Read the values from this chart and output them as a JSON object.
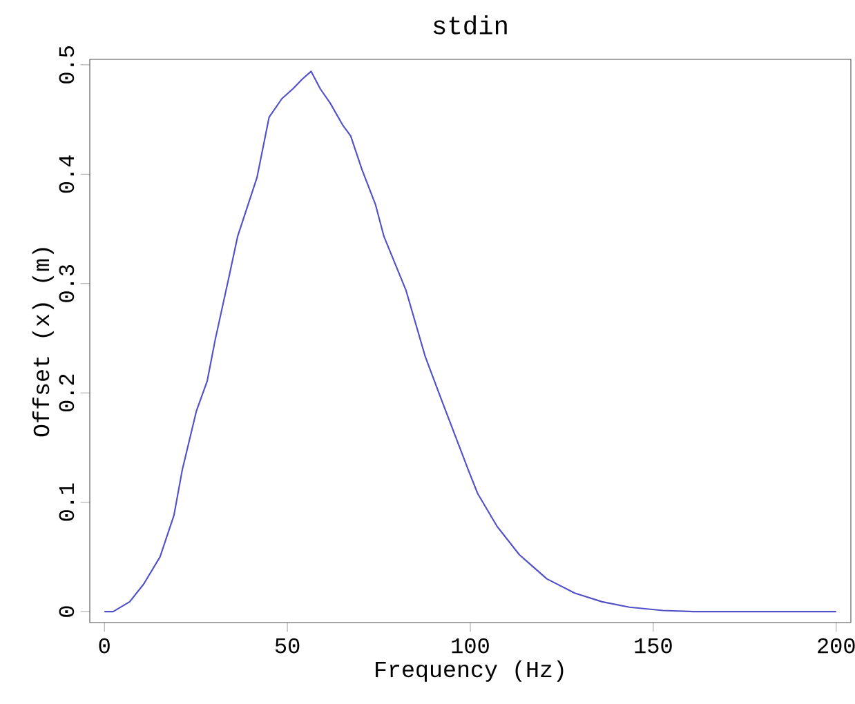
{
  "chart_data": {
    "type": "line",
    "title": "stdin",
    "xlabel": "Frequency (Hz)",
    "ylabel": "Offset (x) (m)",
    "x": [
      0,
      2.4,
      6.9,
      10.7,
      15.2,
      19.0,
      21.3,
      25.1,
      28.1,
      30.3,
      34.1,
      36.4,
      41.7,
      45.0,
      48.5,
      51.5,
      54.1,
      56.5,
      59.0,
      61.7,
      65.1,
      67.3,
      70.3,
      74.1,
      76.4,
      82.4,
      87.7,
      92.2,
      99.5,
      102,
      107.3,
      113.4,
      120.9,
      128.5,
      136,
      143.5,
      152.6,
      161,
      200
    ],
    "series": [
      {
        "color": "#5050c8",
        "values": [
          0,
          0,
          0.009,
          0.025,
          0.05,
          0.088,
          0.13,
          0.183,
          0.211,
          0.249,
          0.307,
          0.343,
          0.397,
          0.452,
          0.469,
          0.478,
          0.487,
          0.494,
          0.478,
          0.465,
          0.445,
          0.435,
          0.405,
          0.372,
          0.343,
          0.294,
          0.233,
          0.193,
          0.129,
          0.108,
          0.078,
          0.052,
          0.03,
          0.017,
          0.009,
          0.004,
          0.001,
          0,
          0
        ]
      }
    ],
    "xlim": [
      -4,
      204
    ],
    "ylim": [
      -0.01,
      0.505
    ],
    "xticks": [
      0,
      50,
      100,
      150,
      200
    ],
    "yticks": [
      0,
      0.1,
      0.2,
      0.3,
      0.4,
      0.5
    ],
    "grid": false,
    "marker": "none",
    "line_style": "solid"
  }
}
